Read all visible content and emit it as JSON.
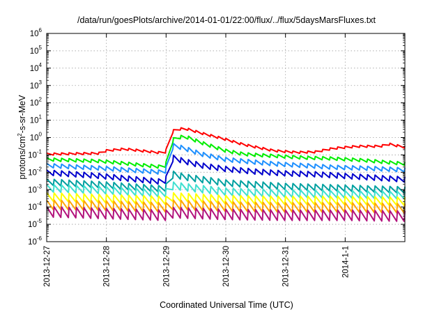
{
  "chart_data": {
    "type": "line",
    "title": "/data/run/goesPlots/archive/2014-01-01/22:00/flux/../flux/5daysMarsFluxes.txt",
    "xlabel": "Coordinated Universal Time (UTC)",
    "ylabel": "protons/cm2-s-sr-MeV",
    "ylabel_parts": {
      "pre": "protons/cm",
      "sup": "2",
      "post": "-s-sr-MeV"
    },
    "yscale": "log",
    "ylim_exp": [
      -6,
      6
    ],
    "y_tick_base": "10",
    "y_tick_exponents": [
      "-6",
      "-5",
      "-4",
      "-3",
      "-2",
      "-1",
      "0",
      "1",
      "2",
      "3",
      "4",
      "5",
      "6"
    ],
    "xlim_days": [
      0,
      6
    ],
    "x_tick_labels": [
      "2013-12-27",
      "2013-12-28",
      "2013-12-29",
      "2013-12-30",
      "2013-12-31",
      "2014-1-1"
    ],
    "grid": true,
    "series": [
      {
        "color": "#ff0000",
        "points": [
          [
            0,
            -0.95
          ],
          [
            0.9,
            -0.9
          ],
          [
            1.0,
            -0.75
          ],
          [
            1.3,
            -0.65
          ],
          [
            1.98,
            -0.9
          ],
          [
            2.12,
            0.4
          ],
          [
            2.3,
            0.55
          ],
          [
            2.6,
            0.25
          ],
          [
            3.0,
            -0.1
          ],
          [
            3.3,
            -0.4
          ],
          [
            3.8,
            -0.75
          ],
          [
            4.2,
            -0.85
          ],
          [
            4.5,
            -0.82
          ],
          [
            4.8,
            -0.62
          ],
          [
            5.2,
            -0.5
          ],
          [
            5.6,
            -0.5
          ],
          [
            5.7,
            -0.35
          ],
          [
            6.0,
            -0.55
          ]
        ]
      },
      {
        "color": "#00ee00",
        "points": [
          [
            0,
            -1.25
          ],
          [
            0.9,
            -1.35
          ],
          [
            1.98,
            -1.7
          ],
          [
            2.12,
            -0.1
          ],
          [
            2.3,
            0.1
          ],
          [
            2.6,
            -0.3
          ],
          [
            3.0,
            -0.75
          ],
          [
            3.3,
            -0.95
          ],
          [
            3.8,
            -1.05
          ],
          [
            4.3,
            -1.15
          ],
          [
            4.8,
            -1.2
          ],
          [
            5.3,
            -1.3
          ],
          [
            6.0,
            -1.5
          ]
        ]
      },
      {
        "color": "#1e90ff",
        "points": [
          [
            0,
            -1.6
          ],
          [
            0.9,
            -1.75
          ],
          [
            1.98,
            -2.0
          ],
          [
            2.12,
            -0.45
          ],
          [
            2.3,
            -0.6
          ],
          [
            2.6,
            -0.95
          ],
          [
            3.0,
            -1.25
          ],
          [
            3.3,
            -1.35
          ],
          [
            3.8,
            -1.5
          ],
          [
            4.3,
            -1.6
          ],
          [
            4.8,
            -1.7
          ],
          [
            5.3,
            -1.75
          ],
          [
            6.0,
            -1.85
          ]
        ]
      },
      {
        "color": "#0000cd",
        "points": [
          [
            0,
            -2.0
          ],
          [
            0.9,
            -2.2
          ],
          [
            1.98,
            -2.55
          ],
          [
            2.12,
            -1.15
          ],
          [
            2.3,
            -1.35
          ],
          [
            2.6,
            -1.6
          ],
          [
            3.0,
            -1.8
          ],
          [
            3.5,
            -1.95
          ],
          [
            4.0,
            -2.05
          ],
          [
            4.5,
            -2.1
          ],
          [
            5.0,
            -2.2
          ],
          [
            6.0,
            -2.4
          ]
        ]
      },
      {
        "color": "#00a0a0",
        "points": [
          [
            0,
            -2.55
          ],
          [
            0.9,
            -2.7
          ],
          [
            1.98,
            -2.95
          ],
          [
            2.12,
            -2.1
          ],
          [
            2.3,
            -2.25
          ],
          [
            2.6,
            -2.4
          ],
          [
            3.0,
            -2.6
          ],
          [
            3.5,
            -2.7
          ],
          [
            4.0,
            -2.8
          ],
          [
            4.5,
            -2.85
          ],
          [
            5.0,
            -2.9
          ],
          [
            6.0,
            -3.0
          ]
        ]
      },
      {
        "color": "#40e0d0",
        "points": [
          [
            0,
            -2.9
          ],
          [
            0.9,
            -3.0
          ],
          [
            1.98,
            -3.2
          ],
          [
            2.12,
            -2.75
          ],
          [
            2.6,
            -2.95
          ],
          [
            3.0,
            -3.1
          ],
          [
            4.0,
            -3.2
          ],
          [
            5.0,
            -3.25
          ],
          [
            6.0,
            -3.3
          ]
        ]
      },
      {
        "color": "#ffff00",
        "points": [
          [
            0,
            -3.4
          ],
          [
            1.0,
            -3.5
          ],
          [
            2.0,
            -3.6
          ],
          [
            2.12,
            -3.4
          ],
          [
            3.0,
            -3.55
          ],
          [
            4.0,
            -3.6
          ],
          [
            5.0,
            -3.6
          ],
          [
            6.0,
            -3.65
          ]
        ]
      },
      {
        "color": "#ffa500",
        "points": [
          [
            0,
            -3.85
          ],
          [
            1.0,
            -3.9
          ],
          [
            2.0,
            -4.0
          ],
          [
            2.12,
            -3.85
          ],
          [
            3.0,
            -3.95
          ],
          [
            4.0,
            -4.0
          ],
          [
            5.0,
            -4.0
          ],
          [
            6.0,
            -4.05
          ]
        ]
      },
      {
        "color": "#b2127c",
        "points": [
          [
            0,
            -4.25
          ],
          [
            1.0,
            -4.35
          ],
          [
            2.0,
            -4.45
          ],
          [
            2.12,
            -4.3
          ],
          [
            3.0,
            -4.4
          ],
          [
            4.0,
            -4.45
          ],
          [
            5.0,
            -4.45
          ],
          [
            6.0,
            -4.5
          ]
        ]
      }
    ]
  }
}
